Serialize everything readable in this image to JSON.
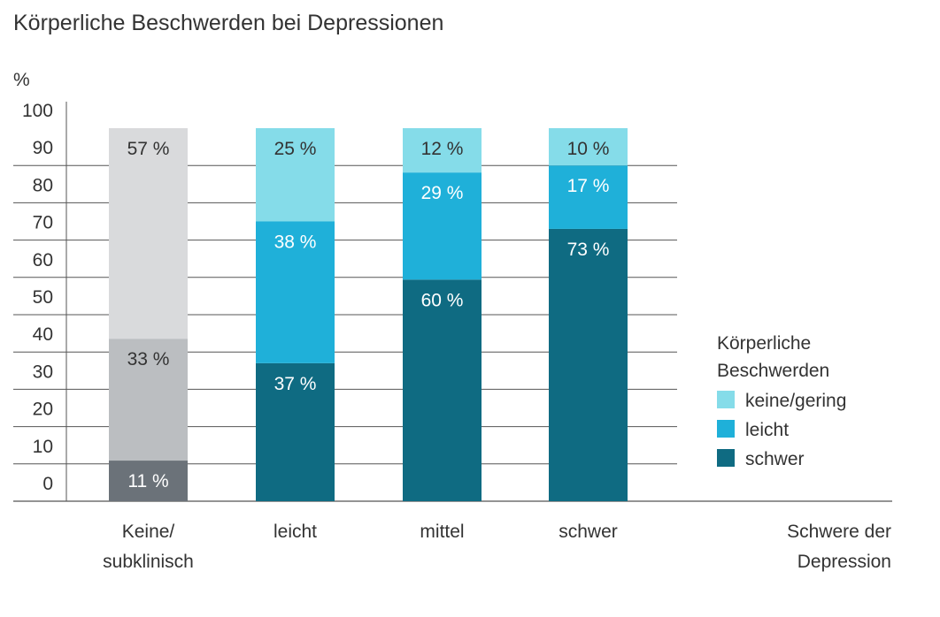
{
  "chart_data": {
    "type": "bar",
    "stacked": true,
    "title": "Körperliche Beschwerden bei Depressionen",
    "ylabel": "%",
    "xlabel": [
      "Schwere der",
      "Depression"
    ],
    "ylim": [
      0,
      100
    ],
    "yticks": [
      0,
      10,
      20,
      30,
      40,
      50,
      60,
      70,
      80,
      90,
      100
    ],
    "grid": true,
    "categories": [
      [
        "Keine/",
        "subklinisch"
      ],
      [
        "leicht"
      ],
      [
        "mittel"
      ],
      [
        "schwer"
      ]
    ],
    "series": [
      {
        "name": "schwer",
        "values": [
          11,
          37,
          60,
          73
        ],
        "labels": [
          "11 %",
          "37 %",
          "60 %",
          "73 %"
        ]
      },
      {
        "name": "leicht",
        "values": [
          33,
          38,
          29,
          17
        ],
        "labels": [
          "33 %",
          "38 %",
          "29 %",
          "17 %"
        ]
      },
      {
        "name": "keine/gering",
        "values": [
          57,
          25,
          12,
          10
        ],
        "labels": [
          "57 %",
          "25 %",
          "12 %",
          "10 %"
        ]
      }
    ],
    "colors": {
      "first_category": [
        "#6b7279",
        "#bbbec1",
        "#d9dadc"
      ],
      "others": [
        "#0f6b82",
        "#1fb0d9",
        "#85dce9"
      ]
    },
    "legend": {
      "title": [
        "Körperliche",
        "Beschwerden"
      ],
      "placement": "right",
      "entries": [
        {
          "label": "keine/gering",
          "color": "#85dce9"
        },
        {
          "label": "leicht",
          "color": "#1fb0d9"
        },
        {
          "label": "schwer",
          "color": "#0f6b82"
        }
      ]
    }
  }
}
